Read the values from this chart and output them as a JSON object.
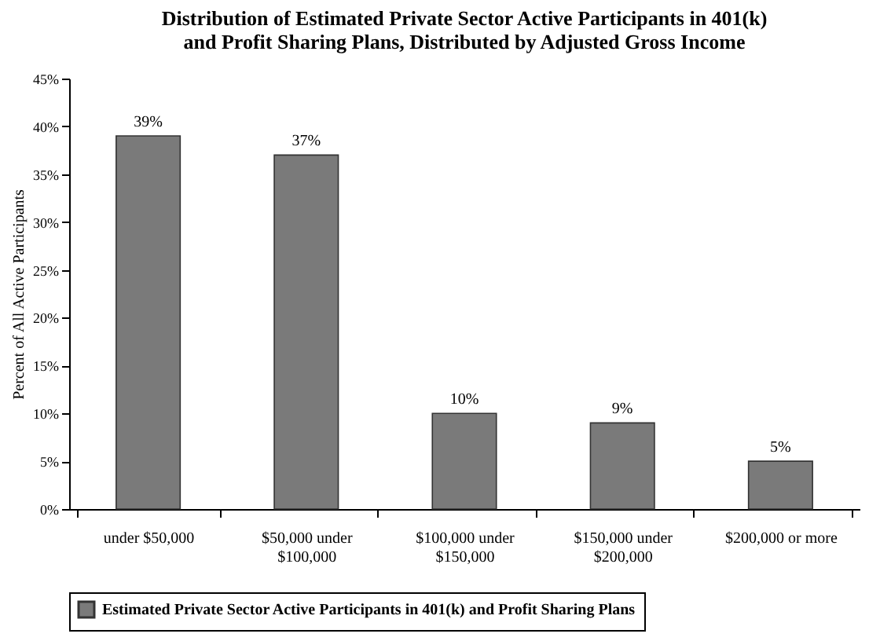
{
  "chart_data": {
    "type": "bar",
    "title": "Distribution of Estimated Private Sector Active Participants in 401(k) and Profit Sharing Plans, Distributed by Adjusted Gross Income",
    "ylabel": "Percent of All Active Participants",
    "categories": [
      "under $50,000",
      "$50,000 under $100,000",
      "$100,000 under $150,000",
      "$150,000 under $200,000",
      "$200,000 or more"
    ],
    "series": [
      {
        "name": "Estimated Private Sector Active Participants in 401(k) and Profit Sharing Plans",
        "color": "#7a7a7a",
        "values": [
          39,
          37,
          10,
          9,
          5
        ],
        "value_labels": [
          "39%",
          "37%",
          "10%",
          "9%",
          "5%"
        ]
      }
    ],
    "ylim": [
      0,
      45
    ],
    "yticks": [
      {
        "value": 0,
        "label": "0%"
      },
      {
        "value": 5,
        "label": "5%"
      },
      {
        "value": 10,
        "label": "10%"
      },
      {
        "value": 15,
        "label": "15%"
      },
      {
        "value": 20,
        "label": "20%"
      },
      {
        "value": 25,
        "label": "25%"
      },
      {
        "value": 30,
        "label": "30%"
      },
      {
        "value": 35,
        "label": "35%"
      },
      {
        "value": 40,
        "label": "40%"
      },
      {
        "value": 45,
        "label": "45%"
      }
    ],
    "legend": "bottom"
  }
}
